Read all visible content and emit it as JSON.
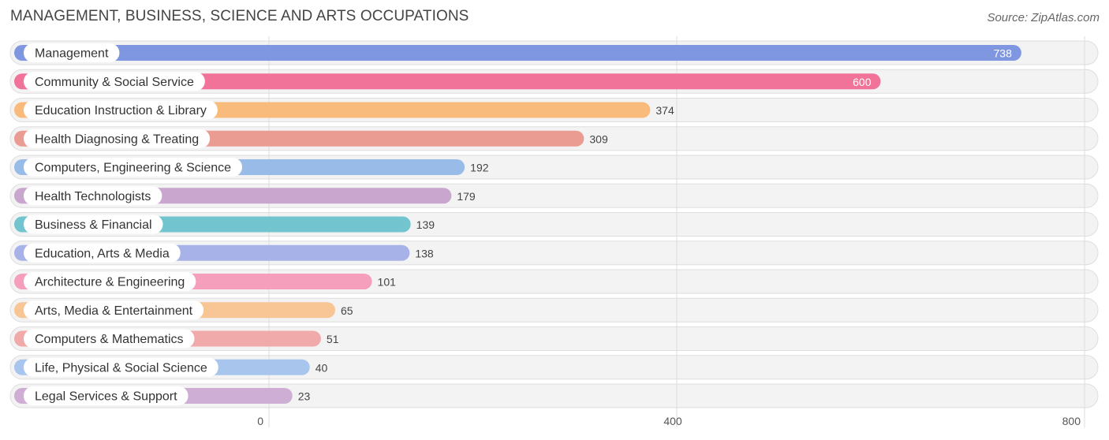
{
  "header": {
    "title": "MANAGEMENT, BUSINESS, SCIENCE AND ARTS OCCUPATIONS",
    "source": "Source: ZipAtlas.com"
  },
  "chart_data": {
    "type": "bar",
    "orientation": "horizontal",
    "title": "MANAGEMENT, BUSINESS, SCIENCE AND ARTS OCCUPATIONS",
    "xlabel": "",
    "ylabel": "",
    "xlim": [
      0,
      800
    ],
    "xticks": [
      0,
      400,
      800
    ],
    "grid": true,
    "categories": [
      "Management",
      "Community & Social Service",
      "Education Instruction & Library",
      "Health Diagnosing & Treating",
      "Computers, Engineering & Science",
      "Health Technologists",
      "Business & Financial",
      "Education, Arts & Media",
      "Architecture & Engineering",
      "Arts, Media & Entertainment",
      "Computers & Mathematics",
      "Life, Physical & Social Science",
      "Legal Services & Support"
    ],
    "values": [
      738,
      600,
      374,
      309,
      192,
      179,
      139,
      138,
      101,
      65,
      51,
      40,
      23
    ],
    "colors": [
      "#7f97e0",
      "#f27399",
      "#f8bb7c",
      "#eb9c92",
      "#98bbe8",
      "#c9a6cd",
      "#72c5cf",
      "#a7b3e8",
      "#f59fbc",
      "#f8c595",
      "#f0aaaa",
      "#a8c6ed",
      "#ceaed4"
    ],
    "value_label_inside": [
      true,
      true,
      false,
      false,
      false,
      false,
      false,
      false,
      false,
      false,
      false,
      false,
      false
    ]
  }
}
